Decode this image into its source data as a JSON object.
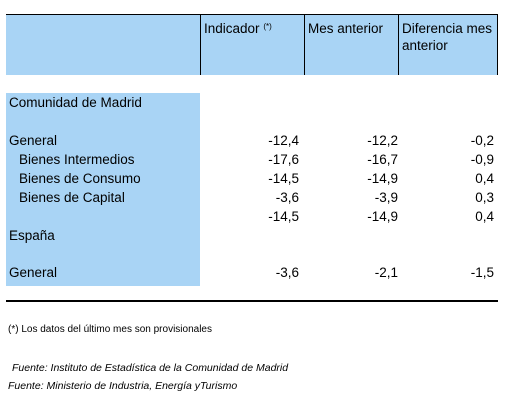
{
  "header": {
    "indicator": "Indicador",
    "indicator_note": "(*)",
    "previous": "Mes anterior",
    "difference": "Diferencia mes anterior"
  },
  "rows": [
    {
      "label": "Comunidad de Madrid"
    },
    {
      "label": "General",
      "values": [
        "-12,4",
        "-12,2",
        "-0,2"
      ]
    },
    {
      "label": "Bienes Intermedios",
      "values": [
        "-17,6",
        "-16,7",
        "-0,9"
      ]
    },
    {
      "label": "Bienes de Consumo",
      "values": [
        "-14,5",
        "-14,9",
        "0,4"
      ]
    },
    {
      "label": "Bienes de Capital",
      "values": [
        "-3,6",
        "-3,9",
        "0,3"
      ]
    },
    {
      "values": [
        "-14,5",
        "-14,9",
        "0,4"
      ]
    },
    {
      "label": "España"
    },
    {
      "label": "General",
      "values": [
        "-3,6",
        "-2,1",
        "-1,5"
      ]
    }
  ],
  "footnote": "(*) Los datos del último mes son provisionales",
  "sources": [
    "Fuente: Instituto de Estadística de la Comunidad de Madrid",
    "Fuente: Ministerio de Industria, Energía yTurismo"
  ]
}
